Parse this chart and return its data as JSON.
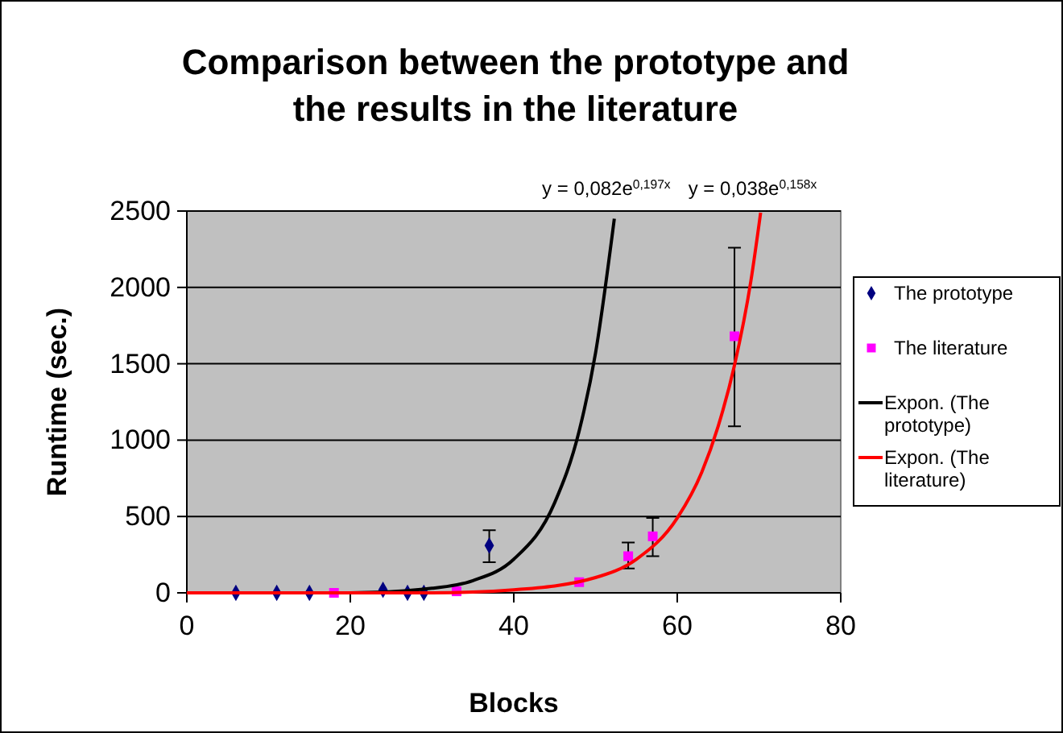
{
  "chart_data": {
    "type": "scatter",
    "title": "Comparison between the prototype and the results in the literature",
    "xlabel": "Blocks",
    "ylabel": "Runtime (sec.)",
    "xlim": [
      0,
      80
    ],
    "xticks": [
      0,
      20,
      40,
      60,
      80
    ],
    "ylim": [
      0,
      2500
    ],
    "yticks": [
      0,
      500,
      1000,
      1500,
      2000,
      2500
    ],
    "grid": "y",
    "legend": "right",
    "annotations": [
      "y = 0,082e$^{0,197x}$",
      "y = 0,038e$^{0,158x}$"
    ],
    "series": [
      {
        "name": "The prototype",
        "marker": "diamond",
        "color": "#000080",
        "x": [
          6,
          11,
          15,
          24,
          27,
          29,
          37
        ],
        "values": [
          0,
          0,
          0,
          20,
          0,
          0,
          310
        ],
        "errors": [
          null,
          null,
          null,
          null,
          null,
          null,
          [
            200,
            410
          ]
        ]
      },
      {
        "name": "The literature",
        "marker": "square",
        "color": "#ff00ff",
        "x": [
          18,
          33,
          48,
          54,
          57,
          67
        ],
        "values": [
          0,
          10,
          70,
          240,
          370,
          1680
        ],
        "errors": [
          null,
          null,
          null,
          [
            160,
            330
          ],
          [
            240,
            490
          ],
          [
            1090,
            2260
          ]
        ]
      },
      {
        "name": "Expon. (The prototype)",
        "type": "line",
        "color": "#000000",
        "x": [
          0,
          10,
          20,
          30,
          35,
          40,
          45,
          48,
          50,
          52.3
        ],
        "values": [
          0,
          0,
          0,
          30,
          80,
          220,
          590,
          1060,
          1570,
          2450
        ]
      },
      {
        "name": "Expon. (The literature)",
        "type": "line",
        "color": "#ff0000",
        "x": [
          0,
          20,
          30,
          40,
          50,
          55,
          60,
          63,
          65,
          67,
          69,
          70.2
        ],
        "values": [
          0,
          0,
          0,
          20,
          100,
          220,
          490,
          790,
          1090,
          1490,
          2040,
          2490
        ]
      }
    ]
  }
}
